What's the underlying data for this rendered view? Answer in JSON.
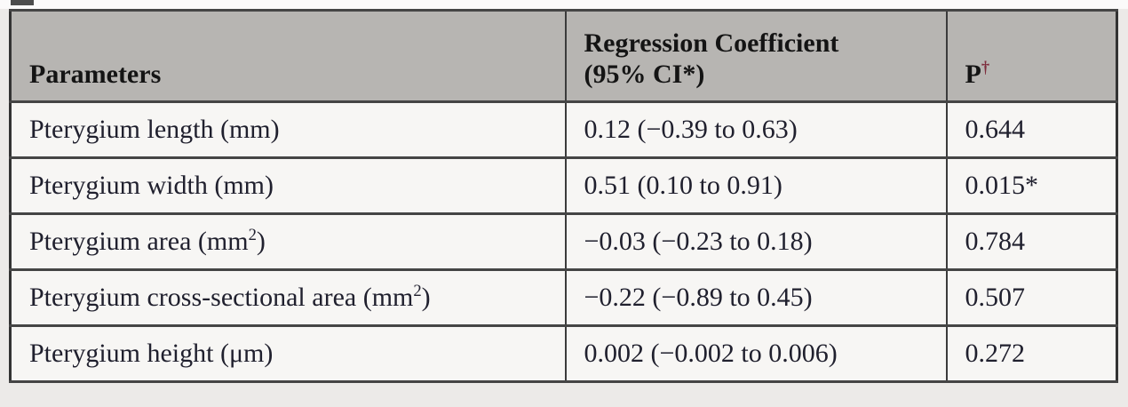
{
  "table": {
    "headers": {
      "parameters": "Parameters",
      "coefficient_line1": "Regression Coefficient",
      "coefficient_line2": "(95% CI*)",
      "p_label": "P",
      "p_sup": "†"
    },
    "rows": [
      {
        "param_pre": "Pterygium length (mm)",
        "param_sup": "",
        "param_post": "",
        "coefficient": "0.12 (−0.39 to 0.63)",
        "p_value": "0.644"
      },
      {
        "param_pre": "Pterygium width (mm)",
        "param_sup": "",
        "param_post": "",
        "coefficient": "0.51 (0.10 to 0.91)",
        "p_value": "0.015*"
      },
      {
        "param_pre": "Pterygium area (mm",
        "param_sup": "2",
        "param_post": ")",
        "coefficient": "−0.03 (−0.23 to 0.18)",
        "p_value": "0.784"
      },
      {
        "param_pre": "Pterygium cross-sectional area (mm",
        "param_sup": "2",
        "param_post": ")",
        "coefficient": "−0.22 (−0.89 to 0.45)",
        "p_value": "0.507"
      },
      {
        "param_pre": "Pterygium height (μm)",
        "param_sup": "",
        "param_post": "",
        "coefficient": "0.002 (−0.002 to 0.006)",
        "p_value": "0.272"
      }
    ]
  },
  "colors": {
    "header_background": "#b7b5b2",
    "cell_background": "#f7f6f4",
    "border": "#3b3b3b",
    "body_text": "#20202e",
    "dagger_accent": "#7e2c3c",
    "page_background": "#eceae8"
  }
}
